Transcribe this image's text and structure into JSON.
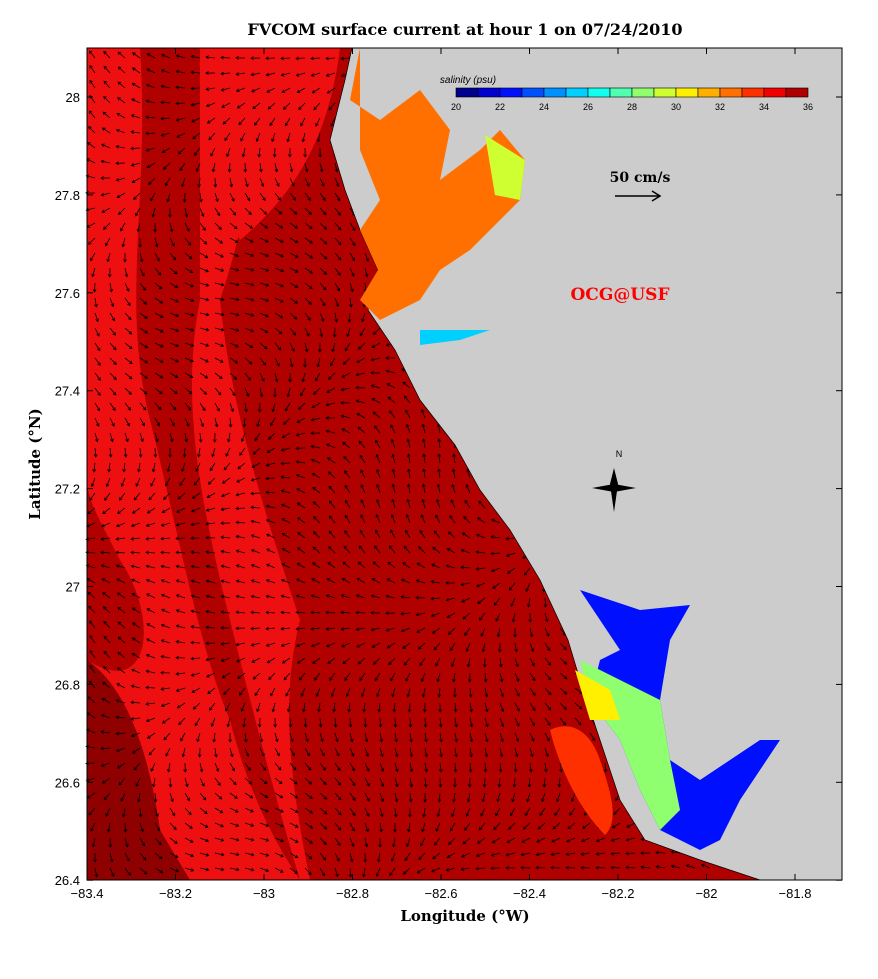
{
  "title": "FVCOM surface current at hour 1 on 07/24/2010",
  "xlabel": "Longitude (°W)",
  "ylabel": "Latitude (°N)",
  "x_ticks": [
    "−83.4",
    "−83.2",
    "−83",
    "−82.8",
    "−82.6",
    "−82.4",
    "−82.2",
    "−82",
    "−81.8"
  ],
  "y_ticks": [
    "28",
    "27.8",
    "27.6",
    "27.4",
    "27.2",
    "27",
    "26.8",
    "26.6",
    "26.4"
  ],
  "colorbar": {
    "label": "salinity (psu)",
    "ticks": [
      "20",
      "22",
      "24",
      "26",
      "28",
      "30",
      "32",
      "34",
      "36"
    ],
    "colors": [
      "#00008f",
      "#0000cf",
      "#0010ff",
      "#0050ff",
      "#0090ff",
      "#00cfff",
      "#10ffef",
      "#50ffaf",
      "#90ff6f",
      "#cfff30",
      "#ffef00",
      "#ffaf00",
      "#ff7000",
      "#ff3000",
      "#f00000",
      "#af0000"
    ]
  },
  "scale_label": "50 cm/s",
  "watermark": "OCG@USF",
  "north_label": "N",
  "colors": {
    "land": "#cccccc",
    "sea_dark": "#b00000",
    "sea": "#ee1010",
    "watermark": "#ff0000"
  }
}
